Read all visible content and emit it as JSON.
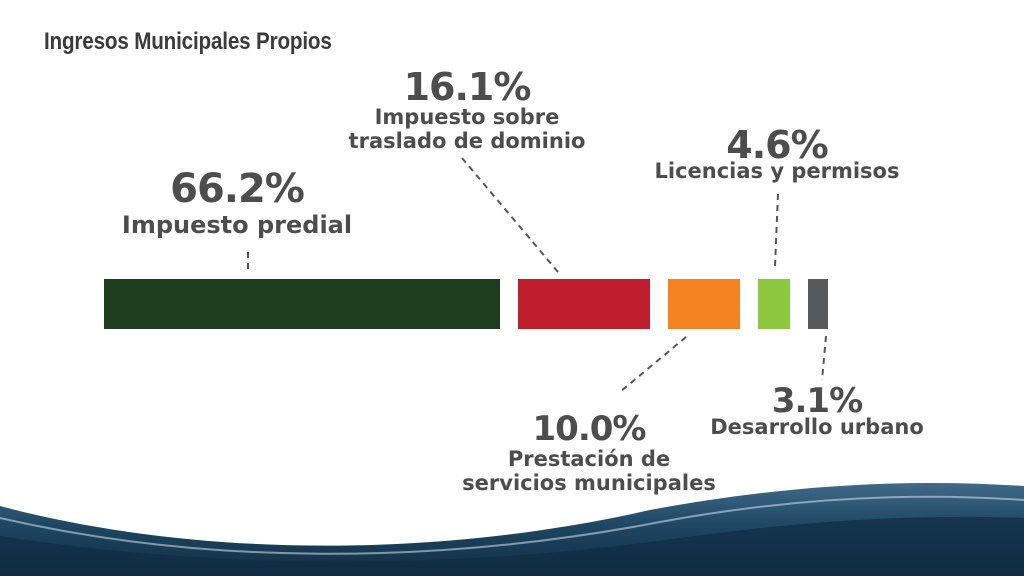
{
  "title": "Ingresos Municipales Propios",
  "chart_data": {
    "type": "bar",
    "orientation": "horizontal-segmented",
    "unit": "%",
    "categories": [
      "Impuesto predial",
      "Impuesto sobre traslado de dominio",
      "Prestación de servicios municipales",
      "Licencias y permisos",
      "Desarrollo urbano"
    ],
    "values": [
      66.2,
      16.1,
      10.0,
      4.6,
      3.1
    ],
    "value_labels": [
      "66.2%",
      "16.1%",
      "10.0%",
      "4.6%",
      "3.1%"
    ],
    "label_lines": [
      [
        "Impuesto predial"
      ],
      [
        "Impuesto sobre",
        "traslado de dominio"
      ],
      [
        "Prestación de",
        "servicios municipales"
      ],
      [
        "Licencias y permisos"
      ],
      [
        "Desarrollo urbano"
      ]
    ],
    "colors": [
      "#1f3d1f",
      "#be1e2d",
      "#f58220",
      "#8dc63f",
      "#58595b"
    ]
  }
}
